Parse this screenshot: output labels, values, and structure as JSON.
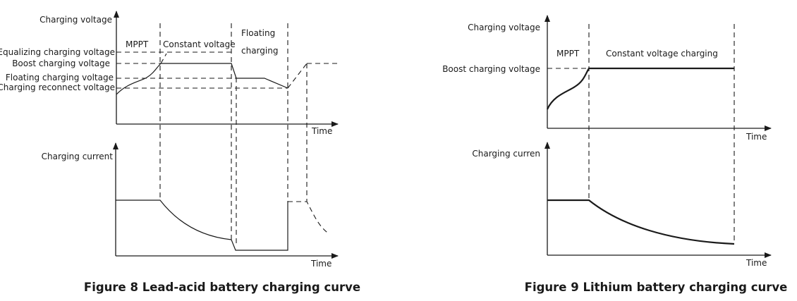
{
  "fig8": {
    "caption": "Figure 8 Lead-acid battery charging curve",
    "voltage_axis": "Charging voltage",
    "current_axis": "Charging current",
    "time_label": "Time",
    "stages": {
      "mppt": "MPPT",
      "constant": "Constant voltage",
      "floating1": "Floating",
      "floating2": "charging"
    },
    "levels": {
      "equalizing": "Equalizing charging voltage",
      "boost": "Boost charging voltage",
      "floating": "Floating charging voltage",
      "reconnect": "Charging reconnect voltage"
    }
  },
  "fig9": {
    "caption": "Figure 9 Lithium battery charging curve",
    "voltage_axis": "Charging voltage",
    "current_axis": "Charging curren",
    "time_label": "Time",
    "stages": {
      "mppt": "MPPT",
      "constant": "Constant voltage charging"
    },
    "levels": {
      "boost": "Boost charging voltage"
    }
  }
}
